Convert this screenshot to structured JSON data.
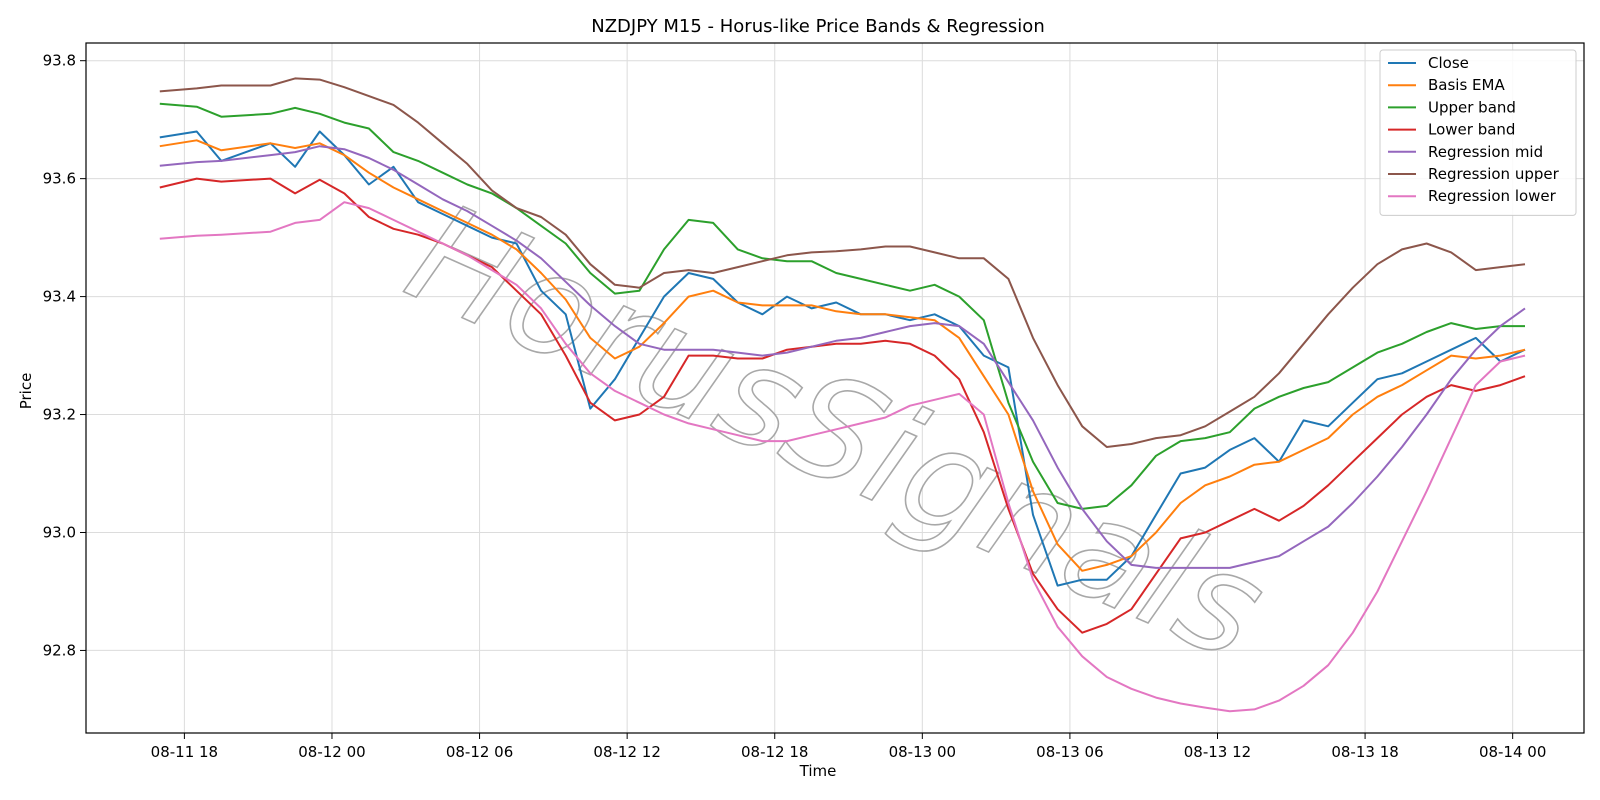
{
  "chart_data": {
    "type": "line",
    "title": "NZDJPY M15 - Horus-like Price Bands & Regression",
    "xlabel": "Time",
    "ylabel": "Price",
    "watermark": "HorusSignals",
    "xlim": [
      -0.25,
      30.2
    ],
    "ylim": [
      92.66,
      93.83
    ],
    "yticks": [
      92.8,
      93.0,
      93.2,
      93.4,
      93.6,
      93.8
    ],
    "ytick_labels": [
      "92.8",
      "93.0",
      "93.2",
      "93.4",
      "93.6",
      "93.8"
    ],
    "xticks": [
      1.75,
      4.75,
      7.75,
      10.75,
      13.75,
      16.75,
      19.75,
      22.75,
      25.75,
      28.75
    ],
    "xtick_labels": [
      "08-11 18",
      "08-12 00",
      "08-12 06",
      "08-12 12",
      "08-12 18",
      "08-13 00",
      "08-13 06",
      "08-13 12",
      "08-13 18",
      "08-14 00"
    ],
    "x_unit_note": "hours/2 since 08-11 14:30",
    "grid": true,
    "legend_position": "top-right",
    "series": [
      {
        "name": "Close",
        "color": "#1f77b4",
        "x": [
          1.25,
          2,
          2.5,
          3.5,
          4,
          4.5,
          5,
          5.5,
          6,
          6.5,
          7,
          7.5,
          8,
          8.5,
          9,
          9.5,
          10,
          10.5,
          11,
          11.5,
          12,
          12.5,
          13,
          13.5,
          14,
          14.5,
          15,
          15.5,
          16,
          16.5,
          17,
          17.5,
          18,
          18.5,
          19,
          19.5,
          20,
          20.5,
          21,
          21.5,
          22,
          22.5,
          23,
          23.5,
          24,
          24.5,
          25,
          25.5,
          26,
          26.5,
          27,
          27.5,
          28,
          28.5,
          29
        ],
        "y": [
          93.67,
          93.68,
          93.63,
          93.66,
          93.62,
          93.68,
          93.64,
          93.59,
          93.62,
          93.56,
          93.54,
          93.52,
          93.5,
          93.49,
          93.41,
          93.37,
          93.21,
          93.26,
          93.33,
          93.4,
          93.44,
          93.43,
          93.39,
          93.37,
          93.4,
          93.38,
          93.39,
          93.37,
          93.37,
          93.36,
          93.37,
          93.35,
          93.3,
          93.28,
          93.03,
          92.91,
          92.92,
          92.92,
          92.96,
          93.03,
          93.1,
          93.11,
          93.14,
          93.16,
          93.12,
          93.19,
          93.18,
          93.22,
          93.26,
          93.27,
          93.29,
          93.31,
          93.33,
          93.29,
          93.31
        ]
      },
      {
        "name": "Basis EMA",
        "color": "#ff7f0e",
        "x": [
          1.25,
          2,
          2.5,
          3.5,
          4,
          4.5,
          5,
          5.5,
          6,
          6.5,
          7,
          7.5,
          8,
          8.5,
          9,
          9.5,
          10,
          10.5,
          11,
          11.5,
          12,
          12.5,
          13,
          13.5,
          14,
          14.5,
          15,
          15.5,
          16,
          16.5,
          17,
          17.5,
          18,
          18.5,
          19,
          19.5,
          20,
          20.5,
          21,
          21.5,
          22,
          22.5,
          23,
          23.5,
          24,
          24.5,
          25,
          25.5,
          26,
          26.5,
          27,
          27.5,
          28,
          28.5,
          29
        ],
        "y": [
          93.655,
          93.665,
          93.648,
          93.66,
          93.652,
          93.66,
          93.64,
          93.61,
          93.585,
          93.565,
          93.545,
          93.525,
          93.505,
          93.48,
          93.44,
          93.395,
          93.33,
          93.295,
          93.315,
          93.355,
          93.4,
          93.41,
          93.39,
          93.385,
          93.385,
          93.385,
          93.375,
          93.37,
          93.37,
          93.365,
          93.36,
          93.33,
          93.265,
          93.2,
          93.07,
          92.98,
          92.935,
          92.945,
          92.96,
          93.0,
          93.05,
          93.08,
          93.095,
          93.115,
          93.12,
          93.14,
          93.16,
          93.2,
          93.23,
          93.25,
          93.275,
          93.3,
          93.295,
          93.3,
          93.31
        ]
      },
      {
        "name": "Upper band",
        "color": "#2ca02c",
        "x": [
          1.25,
          2,
          2.5,
          3.5,
          4,
          4.5,
          5,
          5.5,
          6,
          6.5,
          7,
          7.5,
          8,
          8.5,
          9,
          9.5,
          10,
          10.5,
          11,
          11.5,
          12,
          12.5,
          13,
          13.5,
          14,
          14.5,
          15,
          15.5,
          16,
          16.5,
          17,
          17.5,
          18,
          18.5,
          19,
          19.5,
          20,
          20.5,
          21,
          21.5,
          22,
          22.5,
          23,
          23.5,
          24,
          24.5,
          25,
          25.5,
          26,
          26.5,
          27,
          27.5,
          28,
          28.5,
          29
        ],
        "y": [
          93.727,
          93.722,
          93.705,
          93.71,
          93.72,
          93.71,
          93.695,
          93.685,
          93.645,
          93.63,
          93.61,
          93.59,
          93.575,
          93.55,
          93.52,
          93.49,
          93.44,
          93.405,
          93.41,
          93.48,
          93.53,
          93.525,
          93.48,
          93.465,
          93.46,
          93.46,
          93.44,
          93.43,
          93.42,
          93.41,
          93.42,
          93.4,
          93.36,
          93.22,
          93.12,
          93.05,
          93.04,
          93.045,
          93.08,
          93.13,
          93.155,
          93.16,
          93.17,
          93.21,
          93.23,
          93.245,
          93.255,
          93.28,
          93.305,
          93.32,
          93.34,
          93.355,
          93.345,
          93.35,
          93.35
        ]
      },
      {
        "name": "Lower band",
        "color": "#d62728",
        "x": [
          1.25,
          2,
          2.5,
          3.5,
          4,
          4.5,
          5,
          5.5,
          6,
          6.5,
          7,
          7.5,
          8,
          8.5,
          9,
          9.5,
          10,
          10.5,
          11,
          11.5,
          12,
          12.5,
          13,
          13.5,
          14,
          14.5,
          15,
          15.5,
          16,
          16.5,
          17,
          17.5,
          18,
          18.5,
          19,
          19.5,
          20,
          20.5,
          21,
          21.5,
          22,
          22.5,
          23,
          23.5,
          24,
          24.5,
          25,
          25.5,
          26,
          26.5,
          27,
          27.5,
          28,
          28.5,
          29
        ],
        "y": [
          93.585,
          93.6,
          93.595,
          93.6,
          93.575,
          93.598,
          93.575,
          93.535,
          93.515,
          93.505,
          93.49,
          93.47,
          93.45,
          93.41,
          93.37,
          93.3,
          93.22,
          93.19,
          93.2,
          93.23,
          93.3,
          93.3,
          93.295,
          93.295,
          93.31,
          93.315,
          93.32,
          93.32,
          93.325,
          93.32,
          93.3,
          93.26,
          93.17,
          93.04,
          92.93,
          92.87,
          92.83,
          92.845,
          92.87,
          92.93,
          92.99,
          93.0,
          93.02,
          93.04,
          93.02,
          93.045,
          93.08,
          93.12,
          93.16,
          93.2,
          93.23,
          93.25,
          93.24,
          93.25,
          93.265
        ]
      },
      {
        "name": "Regression mid",
        "color": "#9467bd",
        "x": [
          1.25,
          2,
          2.5,
          3.5,
          4,
          4.5,
          5,
          5.5,
          6,
          6.5,
          7,
          7.5,
          8,
          8.5,
          9,
          9.5,
          10,
          10.5,
          11,
          11.5,
          12,
          12.5,
          13,
          13.5,
          14,
          14.5,
          15,
          15.5,
          16,
          16.5,
          17,
          17.5,
          18,
          18.5,
          19,
          19.5,
          20,
          20.5,
          21,
          21.5,
          22,
          22.5,
          23,
          23.5,
          24,
          24.5,
          25,
          25.5,
          26,
          26.5,
          27,
          27.5,
          28,
          28.5,
          29
        ],
        "y": [
          93.622,
          93.628,
          93.63,
          93.64,
          93.645,
          93.655,
          93.65,
          93.635,
          93.615,
          93.59,
          93.565,
          93.545,
          93.52,
          93.495,
          93.465,
          93.425,
          93.385,
          93.35,
          93.32,
          93.31,
          93.31,
          93.31,
          93.305,
          93.3,
          93.305,
          93.315,
          93.325,
          93.33,
          93.34,
          93.35,
          93.355,
          93.35,
          93.32,
          93.255,
          93.19,
          93.11,
          93.04,
          92.985,
          92.945,
          92.94,
          92.94,
          92.94,
          92.94,
          92.95,
          92.96,
          92.985,
          93.01,
          93.05,
          93.095,
          93.145,
          93.2,
          93.26,
          93.31,
          93.35,
          93.38
        ]
      },
      {
        "name": "Regression upper",
        "color": "#8c564b",
        "x": [
          1.25,
          2,
          2.5,
          3.5,
          4,
          4.5,
          5,
          5.5,
          6,
          6.5,
          7,
          7.5,
          8,
          8.5,
          9,
          9.5,
          10,
          10.5,
          11,
          11.5,
          12,
          12.5,
          13,
          13.5,
          14,
          14.5,
          15,
          15.5,
          16,
          16.5,
          17,
          17.5,
          18,
          18.5,
          19,
          19.5,
          20,
          20.5,
          21,
          21.5,
          22,
          22.5,
          23,
          23.5,
          24,
          24.5,
          25,
          25.5,
          26,
          26.5,
          27,
          27.5,
          28,
          28.5,
          29
        ],
        "y": [
          93.748,
          93.753,
          93.758,
          93.758,
          93.77,
          93.768,
          93.755,
          93.74,
          93.725,
          93.695,
          93.66,
          93.625,
          93.58,
          93.55,
          93.535,
          93.505,
          93.455,
          93.42,
          93.415,
          93.44,
          93.445,
          93.44,
          93.45,
          93.46,
          93.47,
          93.475,
          93.477,
          93.48,
          93.485,
          93.485,
          93.475,
          93.465,
          93.465,
          93.43,
          93.33,
          93.25,
          93.18,
          93.145,
          93.15,
          93.16,
          93.165,
          93.18,
          93.205,
          93.23,
          93.27,
          93.32,
          93.37,
          93.415,
          93.455,
          93.48,
          93.49,
          93.475,
          93.445,
          93.45,
          93.455
        ]
      },
      {
        "name": "Regression lower",
        "color": "#e377c2",
        "x": [
          1.25,
          2,
          2.5,
          3.5,
          4,
          4.5,
          5,
          5.5,
          6,
          6.5,
          7,
          7.5,
          8,
          8.5,
          9,
          9.5,
          10,
          10.5,
          11,
          11.5,
          12,
          12.5,
          13,
          13.5,
          14,
          14.5,
          15,
          15.5,
          16,
          16.5,
          17,
          17.5,
          18,
          18.5,
          19,
          19.5,
          20,
          20.5,
          21,
          21.5,
          22,
          22.5,
          23,
          23.5,
          24,
          24.5,
          25,
          25.5,
          26,
          26.5,
          27,
          27.5,
          28,
          28.5,
          29
        ],
        "y": [
          93.498,
          93.503,
          93.505,
          93.51,
          93.525,
          93.53,
          93.56,
          93.55,
          93.53,
          93.51,
          93.49,
          93.47,
          93.445,
          93.42,
          93.38,
          93.32,
          93.27,
          93.24,
          93.22,
          93.2,
          93.185,
          93.175,
          93.165,
          93.155,
          93.155,
          93.165,
          93.175,
          93.185,
          93.195,
          93.215,
          93.225,
          93.235,
          93.2,
          93.05,
          92.92,
          92.84,
          92.79,
          92.755,
          92.735,
          92.72,
          92.71,
          92.703,
          92.697,
          92.7,
          92.715,
          92.74,
          92.775,
          92.83,
          92.9,
          92.985,
          93.07,
          93.16,
          93.25,
          93.29,
          93.3
        ]
      }
    ]
  }
}
